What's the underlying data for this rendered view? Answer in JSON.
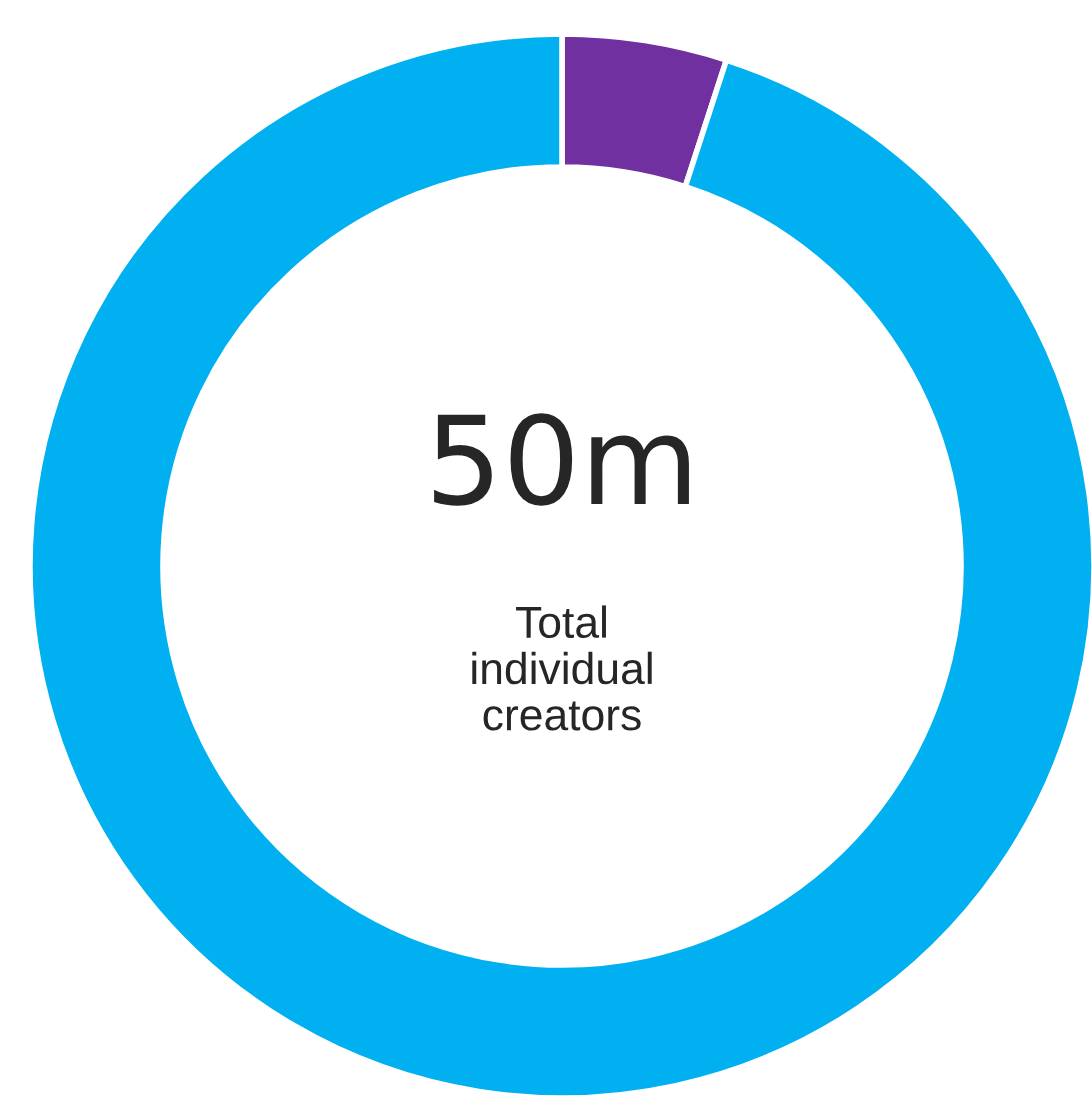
{
  "chart_data": {
    "type": "donut",
    "categories": [
      null,
      null
    ],
    "values": [
      5,
      95
    ],
    "colors": [
      "#7030a0",
      "#00b0f0"
    ],
    "annotations": [
      "50m",
      "Total\nindividual\ncreators"
    ],
    "legend": false
  }
}
